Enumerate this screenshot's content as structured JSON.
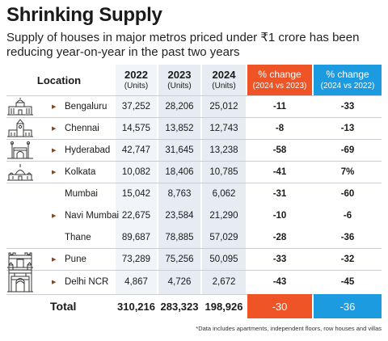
{
  "title": "Shrinking Supply",
  "subtitle": "Supply of houses in major metros priced under ₹1 crore has been reducing year-on-year in the past two years",
  "chart_data": {
    "type": "table",
    "columns": {
      "location": "Location",
      "y2022": {
        "year": "2022",
        "unit": "(Units)"
      },
      "y2023": {
        "year": "2023",
        "unit": "(Units)"
      },
      "y2024": {
        "year": "2024",
        "unit": "(Units)"
      },
      "chg1": {
        "label": "% change",
        "sub": "(2024 vs 2023)"
      },
      "chg2": {
        "label": "% change",
        "sub": "(2024 vs 2022)"
      }
    },
    "rows": [
      {
        "city": "Bengaluru",
        "y2022": "37,252",
        "y2023": "28,206",
        "y2024": "25,012",
        "chg1": "-11",
        "chg2": "-33"
      },
      {
        "city": "Chennai",
        "y2022": "14,575",
        "y2023": "13,852",
        "y2024": "12,743",
        "chg1": "-8",
        "chg2": "-13"
      },
      {
        "city": "Hyderabad",
        "y2022": "42,747",
        "y2023": "31,645",
        "y2024": "13,238",
        "chg1": "-58",
        "chg2": "-69"
      },
      {
        "city": "Kolkata",
        "y2022": "10,082",
        "y2023": "18,406",
        "y2024": "10,785",
        "chg1": "-41",
        "chg2": "7%"
      },
      {
        "city": "Mumbai",
        "y2022": "15,042",
        "y2023": "8,763",
        "y2024": "6,062",
        "chg1": "-31",
        "chg2": "-60"
      },
      {
        "city": "Navi Mumbai",
        "y2022": "22,675",
        "y2023": "23,584",
        "y2024": "21,290",
        "chg1": "-10",
        "chg2": "-6"
      },
      {
        "city": "Thane",
        "y2022": "89,687",
        "y2023": "78,885",
        "y2024": "57,029",
        "chg1": "-28",
        "chg2": "-36"
      },
      {
        "city": "Pune",
        "y2022": "73,289",
        "y2023": "75,256",
        "y2024": "50,095",
        "chg1": "-33",
        "chg2": "-32"
      },
      {
        "city": "Delhi NCR",
        "y2022": "4,867",
        "y2023": "4,726",
        "y2024": "2,672",
        "chg1": "-43",
        "chg2": "-45"
      }
    ],
    "total": {
      "label": "Total",
      "y2022": "310,216",
      "y2023": "283,323",
      "y2024": "198,926",
      "chg1": "-30",
      "chg2": "-36"
    },
    "footnote": "*Data includes apartments, independent floors, row houses and villas",
    "colors": {
      "change_2023": "#ef5426",
      "change_2022": "#1d9be0"
    }
  },
  "icons": [
    "bengaluru-vidhana-soudha-icon",
    "chennai-central-icon",
    "hyderabad-charminar-icon",
    "kolkata-victoria-memorial-icon",
    "mumbai-gateway-of-india-icon",
    "pune-shaniwar-wada-icon",
    "delhi-india-gate-icon"
  ]
}
